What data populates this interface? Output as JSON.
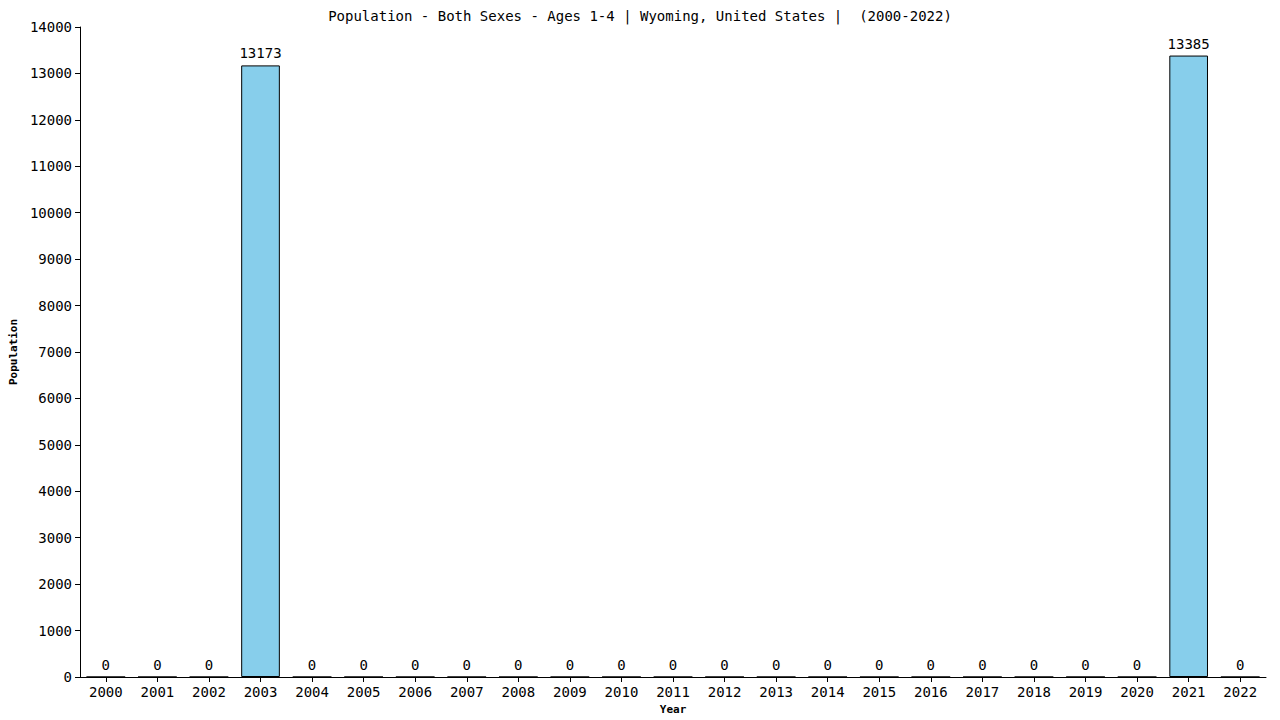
{
  "chart_data": {
    "type": "bar",
    "title": "Population - Both Sexes - Ages 1-4 | Wyoming, United States |  (2000-2022)",
    "x_label": "Year",
    "y_label": "Population",
    "categories": [
      "2000",
      "2001",
      "2002",
      "2003",
      "2004",
      "2005",
      "2006",
      "2007",
      "2008",
      "2009",
      "2010",
      "2011",
      "2012",
      "2013",
      "2014",
      "2015",
      "2016",
      "2017",
      "2018",
      "2019",
      "2020",
      "2021",
      "2022"
    ],
    "values": [
      0,
      0,
      0,
      13173,
      0,
      0,
      0,
      0,
      0,
      0,
      0,
      0,
      0,
      0,
      0,
      0,
      0,
      0,
      0,
      0,
      0,
      13385,
      0
    ],
    "color": "#87ceeb",
    "ylim": [
      0,
      14000
    ],
    "yticks": [
      0,
      1000,
      2000,
      3000,
      4000,
      5000,
      6000,
      7000,
      8000,
      9000,
      10000,
      11000,
      12000,
      13000,
      14000
    ],
    "grid": false,
    "data_labels": true
  }
}
